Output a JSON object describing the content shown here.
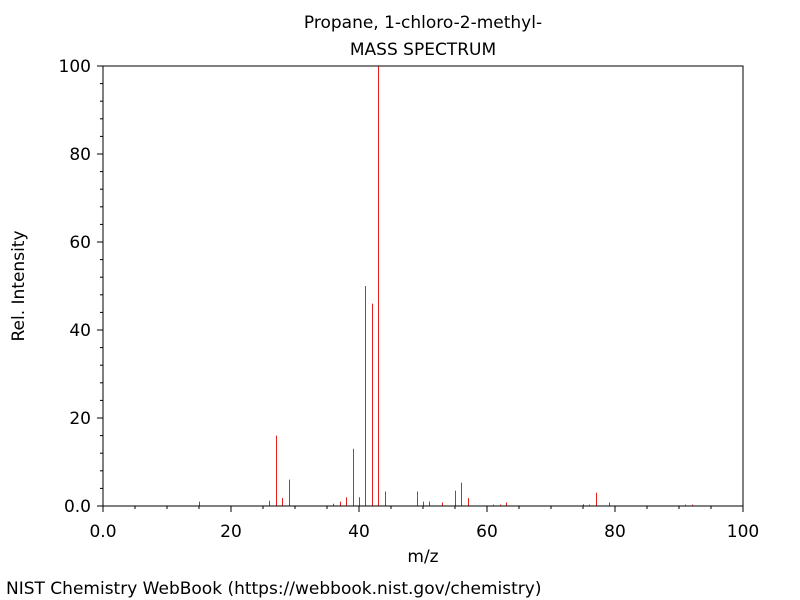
{
  "chart_data": {
    "type": "bar",
    "title": "Propane, 1-chloro-2-methyl-",
    "subtitle": "MASS SPECTRUM",
    "xlabel": "m/z",
    "ylabel": "Rel. Intensity",
    "xlim": [
      0,
      100
    ],
    "ylim": [
      0,
      100
    ],
    "x_ticks": [
      0,
      20,
      40,
      60,
      80,
      100
    ],
    "x_tick_labels": [
      "0.0",
      "20",
      "40",
      "60",
      "80",
      "100"
    ],
    "y_ticks": [
      0,
      20,
      40,
      60,
      80,
      100
    ],
    "y_tick_labels": [
      "0.0",
      "20",
      "40",
      "60",
      "80",
      "100"
    ],
    "grid": false,
    "peak_color": "#e8211c",
    "x": [
      15,
      26,
      27,
      28,
      29,
      36,
      37,
      38,
      39,
      40,
      41,
      42,
      43,
      44,
      49,
      50,
      51,
      53,
      55,
      56,
      57,
      61,
      62,
      63,
      75,
      76,
      77,
      79,
      91,
      92
    ],
    "values": [
      1.0,
      1.2,
      16.0,
      1.8,
      6.0,
      0.5,
      1.0,
      2.0,
      13.0,
      2.0,
      50.0,
      46.0,
      100.0,
      3.3,
      3.3,
      1.0,
      1.0,
      0.8,
      3.5,
      5.3,
      1.8,
      0.3,
      0.3,
      0.8,
      0.4,
      0.3,
      3.0,
      0.8,
      0.3,
      0.3
    ]
  },
  "footer": {
    "credit": "NIST Chemistry WebBook (https://webbook.nist.gov/chemistry)"
  }
}
